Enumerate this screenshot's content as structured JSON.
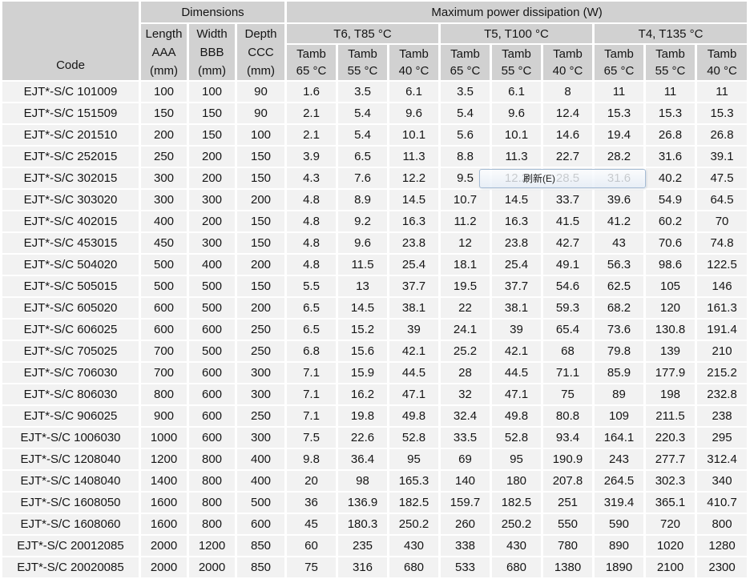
{
  "table": {
    "header": {
      "code_label": "Code",
      "dimensions_label": "Dimensions",
      "power_label": "Maximum power dissipation (W)",
      "dim_cols": [
        {
          "l1": "Length",
          "l2": "AAA",
          "l3": "(mm)"
        },
        {
          "l1": "Width",
          "l2": "BBB",
          "l3": "(mm)"
        },
        {
          "l1": "Depth",
          "l2": "CCC",
          "l3": "(mm)"
        }
      ],
      "temp_groups": [
        "T6, T85 °C",
        "T5, T100 °C",
        "T4, T135 °C"
      ],
      "tamb_cols": [
        {
          "t": "Tamb",
          "c": "65 °C"
        },
        {
          "t": "Tamb",
          "c": "55 °C"
        },
        {
          "t": "Tamb",
          "c": "40 °C"
        },
        {
          "t": "Tamb",
          "c": "65 °C"
        },
        {
          "t": "Tamb",
          "c": "55 °C"
        },
        {
          "t": "Tamb",
          "c": "40 °C"
        },
        {
          "t": "Tamb",
          "c": "65 °C"
        },
        {
          "t": "Tamb",
          "c": "55 °C"
        },
        {
          "t": "Tamb",
          "c": "40 °C"
        }
      ]
    },
    "rows": [
      {
        "code": "EJT*-S/C 101009",
        "values": [
          100,
          100,
          90,
          1.6,
          3.5,
          6.1,
          3.5,
          6.1,
          8,
          11,
          11,
          11
        ]
      },
      {
        "code": "EJT*-S/C 151509",
        "values": [
          150,
          150,
          90,
          2.1,
          5.4,
          9.6,
          5.4,
          9.6,
          12.4,
          15.3,
          15.3,
          15.3
        ]
      },
      {
        "code": "EJT*-S/C 201510",
        "values": [
          200,
          150,
          100,
          2.1,
          5.4,
          10.1,
          5.6,
          10.1,
          14.6,
          19.4,
          26.8,
          26.8
        ]
      },
      {
        "code": "EJT*-S/C 252015",
        "values": [
          250,
          200,
          150,
          3.9,
          6.5,
          11.3,
          8.8,
          11.3,
          22.7,
          28.2,
          31.6,
          39.1
        ]
      },
      {
        "code": "EJT*-S/C 302015",
        "values": [
          300,
          200,
          150,
          4.3,
          7.6,
          12.2,
          9.5,
          12.2,
          28.5,
          31.6,
          40.2,
          47.5
        ]
      },
      {
        "code": "EJT*-S/C 303020",
        "values": [
          300,
          300,
          200,
          4.8,
          8.9,
          14.5,
          10.7,
          14.5,
          33.7,
          39.6,
          54.9,
          64.5
        ]
      },
      {
        "code": "EJT*-S/C 402015",
        "values": [
          400,
          200,
          150,
          4.8,
          9.2,
          16.3,
          11.2,
          16.3,
          41.5,
          41.2,
          60.2,
          70
        ]
      },
      {
        "code": "EJT*-S/C 453015",
        "values": [
          450,
          300,
          150,
          4.8,
          9.6,
          23.8,
          12,
          23.8,
          42.7,
          43,
          70.6,
          74.8
        ]
      },
      {
        "code": "EJT*-S/C 504020",
        "values": [
          500,
          400,
          200,
          4.8,
          11.5,
          25.4,
          18.1,
          25.4,
          49.1,
          56.3,
          98.6,
          122.5
        ]
      },
      {
        "code": "EJT*-S/C 505015",
        "values": [
          500,
          500,
          150,
          5.5,
          13,
          37.7,
          19.5,
          37.7,
          54.6,
          62.5,
          105,
          146
        ]
      },
      {
        "code": "EJT*-S/C 605020",
        "values": [
          600,
          500,
          200,
          6.5,
          14.5,
          38.1,
          22,
          38.1,
          59.3,
          68.2,
          120,
          161.3
        ]
      },
      {
        "code": "EJT*-S/C 606025",
        "values": [
          600,
          600,
          250,
          6.5,
          15.2,
          39,
          24.1,
          39,
          65.4,
          73.6,
          130.8,
          191.4
        ]
      },
      {
        "code": "EJT*-S/C 705025",
        "values": [
          700,
          500,
          250,
          6.8,
          15.6,
          42.1,
          25.2,
          42.1,
          68,
          79.8,
          139,
          210
        ]
      },
      {
        "code": "EJT*-S/C 706030",
        "values": [
          700,
          600,
          300,
          7.1,
          15.9,
          44.5,
          28,
          44.5,
          71.1,
          85.9,
          177.9,
          215.2
        ]
      },
      {
        "code": "EJT*-S/C 806030",
        "values": [
          800,
          600,
          300,
          7.1,
          16.2,
          47.1,
          32,
          47.1,
          75,
          89,
          198,
          232.8
        ]
      },
      {
        "code": "EJT*-S/C 906025",
        "values": [
          900,
          600,
          250,
          7.1,
          19.8,
          49.8,
          32.4,
          49.8,
          80.8,
          109,
          211.5,
          238
        ]
      },
      {
        "code": "EJT*-S/C 1006030",
        "values": [
          1000,
          600,
          300,
          7.5,
          22.6,
          52.8,
          33.5,
          52.8,
          93.4,
          164.1,
          220.3,
          295
        ]
      },
      {
        "code": "EJT*-S/C 1208040",
        "values": [
          1200,
          800,
          400,
          9.8,
          36.4,
          95,
          69,
          95,
          190.9,
          243,
          277.7,
          312.4
        ]
      },
      {
        "code": "EJT*-S/C 1408040",
        "values": [
          1400,
          800,
          400,
          20,
          98,
          165.3,
          140,
          180,
          207.8,
          264.5,
          302.3,
          340
        ]
      },
      {
        "code": "EJT*-S/C 1608050",
        "values": [
          1600,
          800,
          500,
          36,
          136.9,
          182.5,
          159.7,
          182.5,
          251,
          319.4,
          365.1,
          410.7
        ]
      },
      {
        "code": "EJT*-S/C 1608060",
        "values": [
          1600,
          800,
          600,
          45,
          180.3,
          250.2,
          260,
          250.2,
          550,
          590,
          720,
          800
        ]
      },
      {
        "code": "EJT*-S/C 20012085",
        "values": [
          2000,
          1200,
          850,
          60,
          235,
          430,
          338,
          430,
          780,
          890,
          1020,
          1280
        ]
      },
      {
        "code": "EJT*-S/C 20020085",
        "values": [
          2000,
          2000,
          850,
          75,
          316,
          680,
          533,
          680,
          1380,
          1890,
          2100,
          2300
        ]
      }
    ]
  },
  "tooltip": {
    "label": "刷新(E)"
  },
  "colors": {
    "header_bg": "#d1d1d1",
    "cell_bg": "#f2f2f2",
    "gutter": "#ffffff",
    "text": "#151515",
    "tooltip_border": "#a6bcd4"
  }
}
